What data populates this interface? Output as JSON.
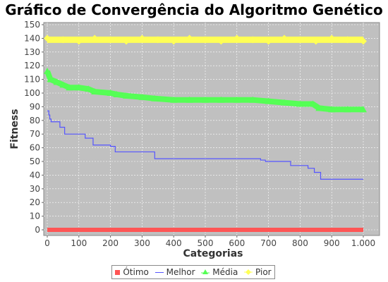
{
  "chart_data": {
    "type": "line",
    "title": "Gráfico de Convergência do Algoritmo Genético",
    "xlabel": "Categorias",
    "ylabel": "Fitness",
    "xlim": [
      0,
      1000
    ],
    "ylim": [
      0,
      150
    ],
    "x_ticks": [
      "0",
      "100",
      "200",
      "300",
      "400",
      "500",
      "600",
      "700",
      "800",
      "900",
      "1.000"
    ],
    "y_ticks": [
      "0",
      "10",
      "20",
      "30",
      "40",
      "50",
      "60",
      "70",
      "80",
      "90",
      "100",
      "110",
      "120",
      "130",
      "140",
      "150"
    ],
    "grid": true,
    "legend_position": "bottom",
    "plot_background": "#c0c0c0",
    "series": [
      {
        "name": "Ótimo",
        "color": "#ff5555",
        "marker": "square",
        "points": [
          [
            0,
            0
          ],
          [
            1000,
            0
          ]
        ]
      },
      {
        "name": "Melhor",
        "color": "#5555ff",
        "marker": "none",
        "step": true,
        "points": [
          [
            0,
            87
          ],
          [
            5,
            84
          ],
          [
            8,
            81
          ],
          [
            12,
            79
          ],
          [
            40,
            75
          ],
          [
            55,
            70
          ],
          [
            120,
            67
          ],
          [
            145,
            62
          ],
          [
            200,
            61
          ],
          [
            215,
            57
          ],
          [
            340,
            52
          ],
          [
            675,
            51
          ],
          [
            690,
            50
          ],
          [
            770,
            47
          ],
          [
            825,
            45
          ],
          [
            845,
            42
          ],
          [
            865,
            37
          ],
          [
            1000,
            37
          ]
        ]
      },
      {
        "name": "Média",
        "color": "#55ff55",
        "marker": "triangle",
        "points": [
          [
            0,
            116
          ],
          [
            10,
            110
          ],
          [
            30,
            108
          ],
          [
            50,
            106
          ],
          [
            70,
            104
          ],
          [
            100,
            104
          ],
          [
            130,
            103
          ],
          [
            150,
            101
          ],
          [
            200,
            100
          ],
          [
            220,
            99
          ],
          [
            250,
            98
          ],
          [
            300,
            97
          ],
          [
            340,
            96
          ],
          [
            400,
            95
          ],
          [
            450,
            95
          ],
          [
            500,
            95
          ],
          [
            550,
            95
          ],
          [
            600,
            95
          ],
          [
            650,
            95
          ],
          [
            700,
            94
          ],
          [
            750,
            93
          ],
          [
            800,
            92
          ],
          [
            840,
            92
          ],
          [
            860,
            89
          ],
          [
            900,
            88
          ],
          [
            950,
            88
          ],
          [
            1000,
            88
          ]
        ]
      },
      {
        "name": "Pior",
        "color": "#ffff55",
        "marker": "diamond",
        "points": [
          [
            0,
            139
          ],
          [
            50,
            139
          ],
          [
            100,
            139
          ],
          [
            150,
            139
          ],
          [
            200,
            139
          ],
          [
            250,
            139
          ],
          [
            300,
            139
          ],
          [
            350,
            139
          ],
          [
            400,
            139
          ],
          [
            450,
            139
          ],
          [
            500,
            139
          ],
          [
            550,
            139
          ],
          [
            600,
            139
          ],
          [
            650,
            139
          ],
          [
            700,
            139
          ],
          [
            750,
            139
          ],
          [
            800,
            139
          ],
          [
            850,
            139
          ],
          [
            900,
            139
          ],
          [
            950,
            139
          ],
          [
            1000,
            139
          ]
        ]
      }
    ]
  }
}
